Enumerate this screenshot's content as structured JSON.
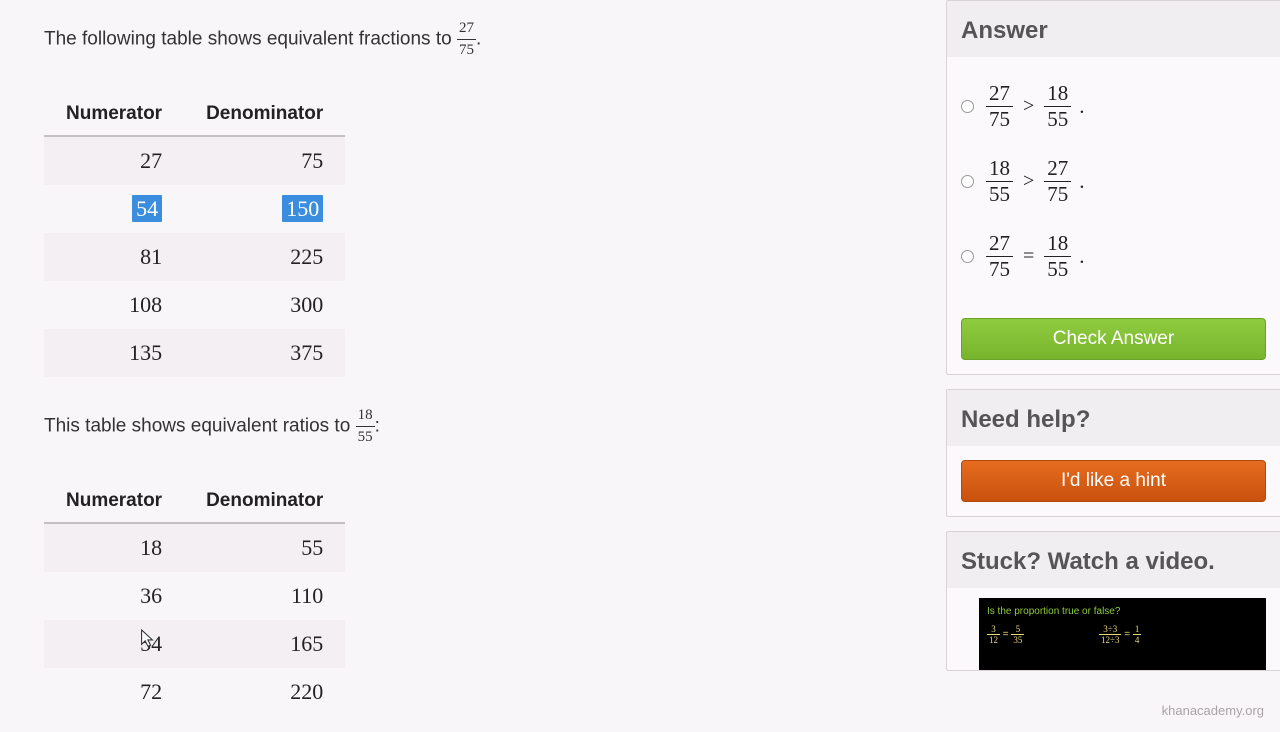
{
  "intro1_prefix": "The following table shows equivalent fractions to ",
  "intro1_frac": {
    "num": "27",
    "den": "75"
  },
  "intro1_suffix": ".",
  "intro2_prefix": "This table shows equivalent ratios to ",
  "intro2_frac": {
    "num": "18",
    "den": "55"
  },
  "intro2_suffix": ":",
  "table_cols": [
    "Numerator",
    "Denominator"
  ],
  "table1": {
    "rows": [
      {
        "n": "27",
        "d": "75",
        "hl": false
      },
      {
        "n": "54",
        "d": "150",
        "hl": true
      },
      {
        "n": "81",
        "d": "225",
        "hl": false
      },
      {
        "n": "108",
        "d": "300",
        "hl": false
      },
      {
        "n": "135",
        "d": "375",
        "hl": false
      }
    ]
  },
  "table2": {
    "rows": [
      {
        "n": "18",
        "d": "55"
      },
      {
        "n": "36",
        "d": "110"
      },
      {
        "n": "54",
        "d": "165"
      },
      {
        "n": "72",
        "d": "220"
      }
    ]
  },
  "answer": {
    "title": "Answer",
    "options": [
      {
        "left": {
          "n": "27",
          "d": "75"
        },
        "op": ">",
        "right": {
          "n": "18",
          "d": "55"
        }
      },
      {
        "left": {
          "n": "18",
          "d": "55"
        },
        "op": ">",
        "right": {
          "n": "27",
          "d": "75"
        }
      },
      {
        "left": {
          "n": "27",
          "d": "75"
        },
        "op": "=",
        "right": {
          "n": "18",
          "d": "55"
        }
      }
    ],
    "check_label": "Check Answer"
  },
  "help": {
    "title": "Need help?",
    "hint_label": "I'd like a hint"
  },
  "video": {
    "title": "Stuck? Watch a video.",
    "question": "Is the proportion true or false?",
    "expr1_l": {
      "n": "3",
      "d": "12"
    },
    "expr1_r": {
      "n": "5",
      "d": "35"
    },
    "expr2_l": {
      "n": "3÷3",
      "d": "12÷3"
    },
    "expr2_r": {
      "n": "1",
      "d": "4"
    }
  },
  "watermark": "khanacademy.org",
  "colors": {
    "page_bg": "#f9f6f9",
    "highlight_bg": "#3b8ede",
    "green_btn": "#78b52e",
    "orange_btn": "#c9510e",
    "panel_border": "#d7d3d7"
  }
}
